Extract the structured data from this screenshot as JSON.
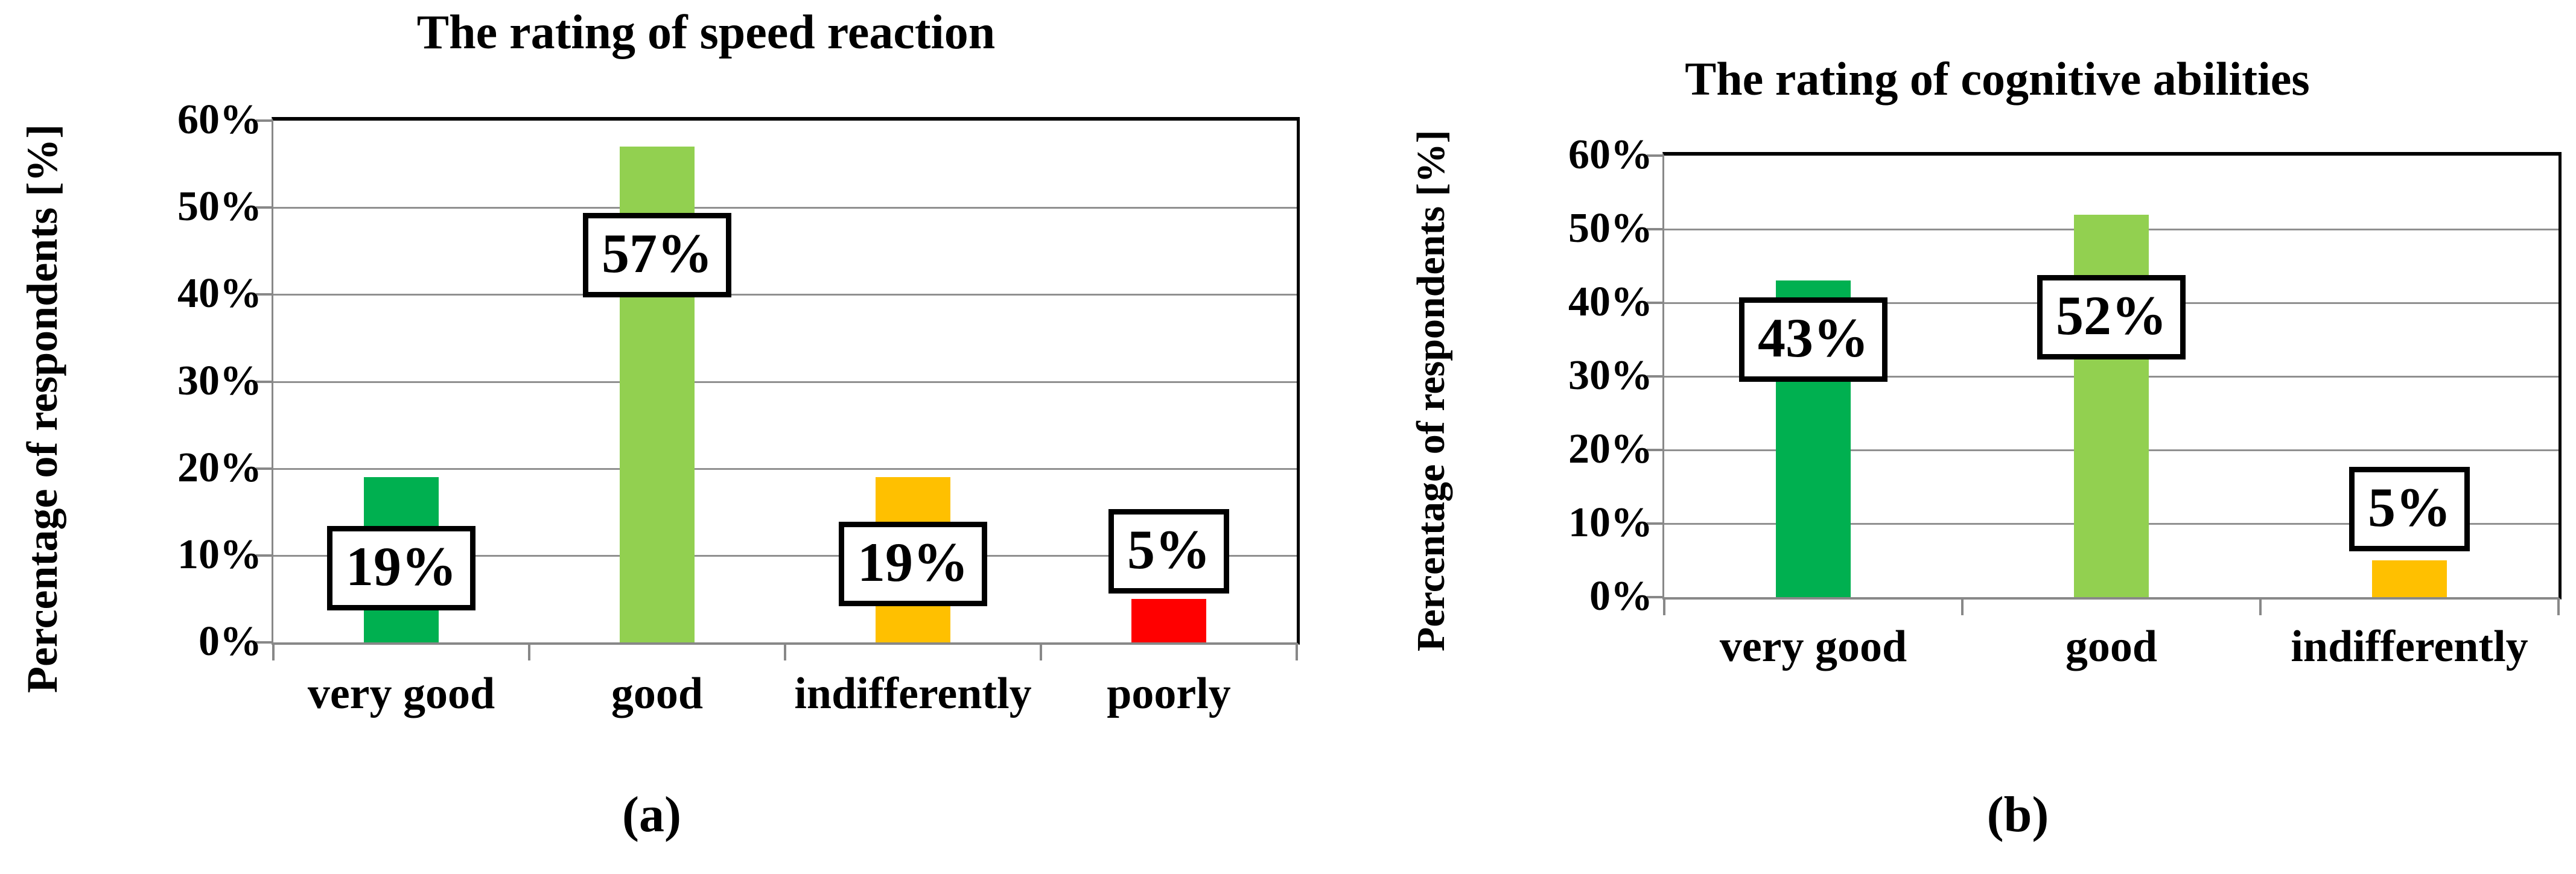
{
  "colors": {
    "background": "#FFFFFF",
    "grid": "#909090",
    "axis": "#888888",
    "plot_border": "#000000",
    "text": "#000000",
    "label_box_bg": "#FFFFFF",
    "label_box_border": "#000000",
    "green_dark": "#00B050",
    "green_light": "#92D050",
    "amber": "#FFC000",
    "red": "#FF0000"
  },
  "chart_data": [
    {
      "type": "bar",
      "title": "The rating of speed reaction",
      "ylabel": "Percentage of respondents [%]",
      "xlabel": "",
      "categories": [
        "very good",
        "good",
        "indifferently",
        "poorly"
      ],
      "values": [
        19,
        57,
        19,
        5
      ],
      "data_labels": [
        "19%",
        "57%",
        "19%",
        "5%"
      ],
      "bar_colors": [
        "#00B050",
        "#92D050",
        "#FFC000",
        "#FF0000"
      ],
      "ylim": [
        0,
        60
      ],
      "ytick_step": 10,
      "ytick_labels": [
        "0%",
        "10%",
        "20%",
        "30%",
        "40%",
        "50%",
        "60%"
      ],
      "grid": true,
      "legend_position": "none",
      "label_box_centers_pct": [
        8.5,
        44.5,
        9,
        10.5
      ],
      "caption": "(a)"
    },
    {
      "type": "bar",
      "title": "The rating of  cognitive abilities",
      "ylabel": "Percentage of respondents [%]",
      "xlabel": "",
      "categories": [
        "very good",
        "good",
        "indifferently"
      ],
      "values": [
        43,
        52,
        5
      ],
      "data_labels": [
        "43%",
        "52%",
        "5%"
      ],
      "bar_colors": [
        "#00B050",
        "#92D050",
        "#FFC000"
      ],
      "ylim": [
        0,
        60
      ],
      "ytick_step": 10,
      "ytick_labels": [
        "0%",
        "10%",
        "20%",
        "30%",
        "40%",
        "50%",
        "60%"
      ],
      "grid": true,
      "legend_position": "none",
      "label_box_centers_pct": [
        35,
        38,
        12
      ],
      "caption": "(b)"
    }
  ]
}
